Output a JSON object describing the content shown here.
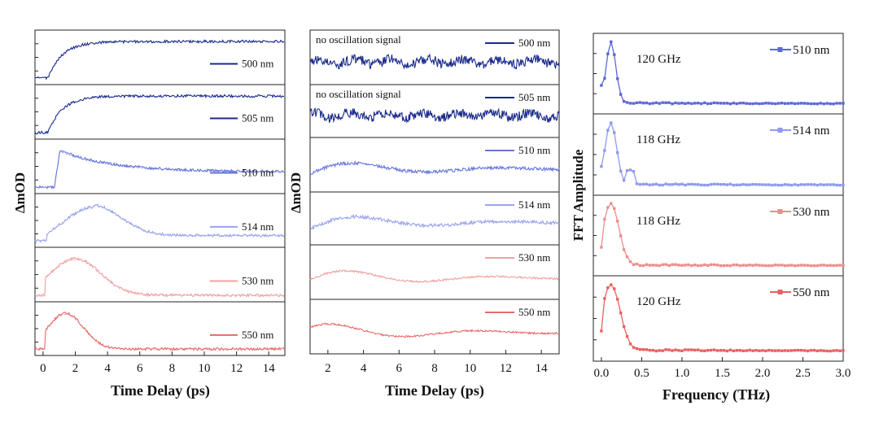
{
  "chart_data": [
    {
      "type": "line",
      "panel": "left",
      "ylabel": "ΔmOD",
      "xlabel": "Time Delay (ps)",
      "xlim": [
        -0.5,
        15
      ],
      "xticks": [
        "0",
        "2",
        "4",
        "6",
        "8",
        "10",
        "12",
        "14"
      ],
      "series": [
        {
          "name": "500 nm",
          "color": "#1a2a8c",
          "shape": "rise_plateau"
        },
        {
          "name": "505 nm",
          "color": "#1a2a8c",
          "shape": "rise_plateau"
        },
        {
          "name": "510 nm",
          "color": "#6674dc",
          "shape": "spike_decay"
        },
        {
          "name": "514 nm",
          "color": "#9aa3ea",
          "shape": "hump_broad"
        },
        {
          "name": "530 nm",
          "color": "#f0a0a0",
          "shape": "hump_decay"
        },
        {
          "name": "550 nm",
          "color": "#e86a6a",
          "shape": "hump_fast"
        }
      ]
    },
    {
      "type": "line",
      "panel": "middle",
      "ylabel": "ΔmOD",
      "xlabel": "Time Delay (ps)",
      "xlim": [
        1,
        15
      ],
      "xticks": [
        "2",
        "4",
        "6",
        "8",
        "10",
        "12",
        "14"
      ],
      "series": [
        {
          "name": "500 nm",
          "color": "#1a2a8c",
          "annotation": "no oscillation signal"
        },
        {
          "name": "505 nm",
          "color": "#1a2a8c",
          "annotation": "no oscillation signal"
        },
        {
          "name": "510 nm",
          "color": "#6674dc",
          "annotation": ""
        },
        {
          "name": "514 nm",
          "color": "#9aa3ea",
          "annotation": ""
        },
        {
          "name": "530 nm",
          "color": "#f0a0a0",
          "annotation": ""
        },
        {
          "name": "550 nm",
          "color": "#e86a6a",
          "annotation": ""
        }
      ]
    },
    {
      "type": "line",
      "panel": "right",
      "ylabel": "FFT Amplitude",
      "xlabel": "Frequency (THz)",
      "xlim": [
        -0.1,
        3.0
      ],
      "xticks": [
        "0.0",
        "0.5",
        "1.0",
        "1.5",
        "2.0",
        "2.5",
        "3.0"
      ],
      "series": [
        {
          "name": "510 nm",
          "color": "#5a68dc",
          "peak_label": "120 GHz",
          "peak_thz": 0.12
        },
        {
          "name": "514 nm",
          "color": "#8f99ee",
          "peak_label": "118 GHz",
          "peak_thz": 0.118
        },
        {
          "name": "530 nm",
          "color": "#f08c8c",
          "peak_label": "118 GHz",
          "peak_thz": 0.118
        },
        {
          "name": "550 nm",
          "color": "#e86060",
          "peak_label": "120 GHz",
          "peak_thz": 0.12
        }
      ]
    }
  ]
}
